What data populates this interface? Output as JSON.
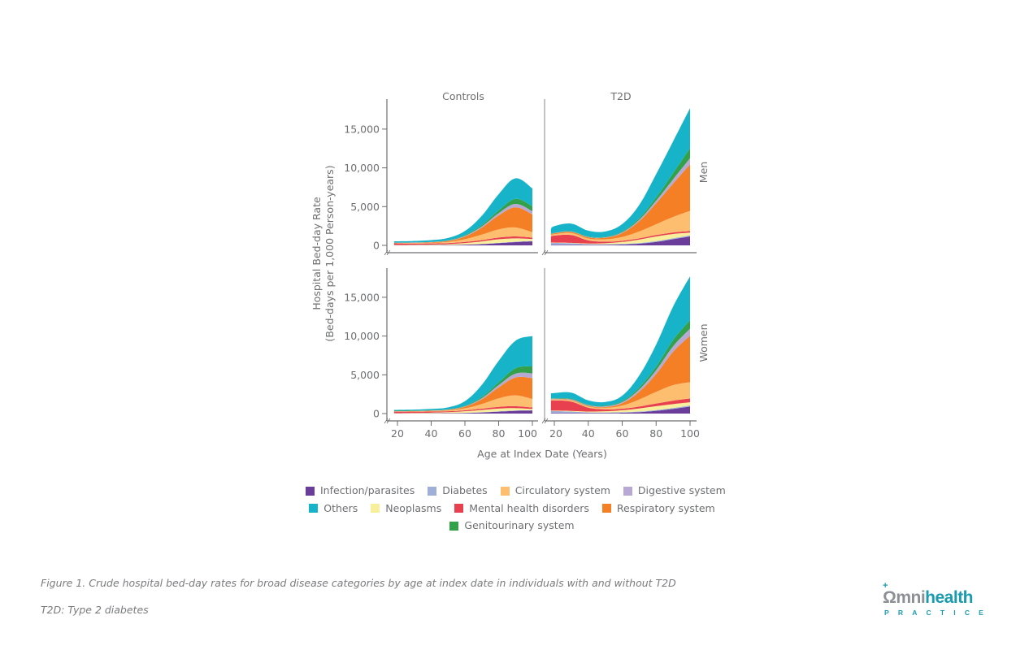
{
  "chart_data": {
    "type": "area",
    "stacked": true,
    "title": "",
    "xlabel": "Age at Index Date (Years)",
    "ylabel": "Hospital Bed-day Rate",
    "ylabel_sub": "(Bed-days per 1,000 Person-years)",
    "xlim": [
      18,
      100
    ],
    "ylim": [
      0,
      18500
    ],
    "x_ticks": [
      20,
      40,
      60,
      80,
      100
    ],
    "x_tick_labels": [
      "20",
      "40",
      "60",
      "80",
      "100"
    ],
    "y_ticks": [
      0,
      5000,
      10000,
      15000
    ],
    "y_tick_labels": [
      "0",
      "5,000",
      "10,000",
      "15,000"
    ],
    "columns": [
      "Controls",
      "T2D"
    ],
    "rows": [
      "Men",
      "Women"
    ],
    "legend_position": "bottom",
    "legend": [
      {
        "name": "Infection/parasites",
        "color": "#6a3d9a"
      },
      {
        "name": "Diabetes",
        "color": "#9fb0d8"
      },
      {
        "name": "Circulatory system",
        "color": "#fdbf6f"
      },
      {
        "name": "Digestive system",
        "color": "#b7a9d3"
      },
      {
        "name": "Others",
        "color": "#17b4c9"
      },
      {
        "name": "Neoplasms",
        "color": "#f8ef9c"
      },
      {
        "name": "Mental health disorders",
        "color": "#e8404f"
      },
      {
        "name": "Respiratory system",
        "color": "#f47f24"
      },
      {
        "name": "Genitourinary system",
        "color": "#33a04a"
      }
    ],
    "stack_order": [
      "Infection/parasites",
      "Diabetes",
      "Neoplasms",
      "Mental health disorders",
      "Circulatory system",
      "Respiratory system",
      "Digestive system",
      "Genitourinary system",
      "Others"
    ],
    "x": [
      18,
      20,
      30,
      40,
      50,
      60,
      70,
      80,
      90,
      100
    ],
    "panels": [
      {
        "column": "Controls",
        "row": "Men",
        "series": [
          {
            "name": "Infection/parasites",
            "values": [
              20,
              20,
              25,
              35,
              50,
              90,
              160,
              290,
              420,
              520
            ]
          },
          {
            "name": "Diabetes",
            "values": [
              5,
              5,
              5,
              8,
              10,
              15,
              25,
              40,
              50,
              50
            ]
          },
          {
            "name": "Neoplasms",
            "values": [
              30,
              30,
              40,
              60,
              110,
              200,
              330,
              450,
              430,
              250
            ]
          },
          {
            "name": "Mental health disorders",
            "values": [
              200,
              200,
              170,
              140,
              130,
              140,
              170,
              230,
              250,
              180
            ]
          },
          {
            "name": "Circulatory system",
            "values": [
              30,
              30,
              50,
              80,
              150,
              350,
              700,
              1050,
              1150,
              700
            ]
          },
          {
            "name": "Respiratory system",
            "values": [
              40,
              40,
              50,
              70,
              120,
              350,
              900,
              1800,
              2600,
              2300
            ]
          },
          {
            "name": "Digestive system",
            "values": [
              20,
              20,
              25,
              35,
              50,
              90,
              170,
              300,
              450,
              400
            ]
          },
          {
            "name": "Genitourinary system",
            "values": [
              10,
              10,
              15,
              20,
              35,
              70,
              160,
              350,
              650,
              650
            ]
          },
          {
            "name": "Others",
            "values": [
              165,
              175,
              190,
              230,
              300,
              550,
              1200,
              2100,
              2650,
              2300
            ]
          }
        ]
      },
      {
        "column": "T2D",
        "row": "Men",
        "series": [
          {
            "name": "Infection/parasites",
            "values": [
              50,
              60,
              70,
              60,
              70,
              110,
              220,
              450,
              800,
              1150
            ]
          },
          {
            "name": "Diabetes",
            "values": [
              250,
              250,
              200,
              100,
              80,
              80,
              80,
              100,
              120,
              150
            ]
          },
          {
            "name": "Neoplasms",
            "values": [
              50,
              50,
              60,
              80,
              130,
              250,
              450,
              600,
              550,
              350
            ]
          },
          {
            "name": "Mental health disorders",
            "values": [
              800,
              900,
              1000,
              400,
              200,
              150,
              150,
              180,
              200,
              200
            ]
          },
          {
            "name": "Circulatory system",
            "values": [
              150,
              180,
              250,
              250,
              300,
              500,
              900,
              1400,
              2000,
              2600
            ]
          },
          {
            "name": "Respiratory system",
            "values": [
              100,
              120,
              150,
              150,
              200,
              500,
              1300,
              2700,
              4300,
              6000
            ]
          },
          {
            "name": "Digestive system",
            "values": [
              30,
              30,
              40,
              50,
              60,
              100,
              200,
              350,
              550,
              800
            ]
          },
          {
            "name": "Genitourinary system",
            "values": [
              30,
              30,
              40,
              50,
              60,
              100,
              200,
              400,
              800,
              1300
            ]
          },
          {
            "name": "Others",
            "values": [
              640,
              860,
              1000,
              760,
              700,
              960,
              1700,
              3000,
              4100,
              5150
            ]
          }
        ]
      },
      {
        "column": "Controls",
        "row": "Women",
        "series": [
          {
            "name": "Infection/parasites",
            "values": [
              20,
              20,
              25,
              35,
              50,
              80,
              140,
              250,
              350,
              400
            ]
          },
          {
            "name": "Diabetes",
            "values": [
              5,
              5,
              5,
              8,
              10,
              15,
              25,
              40,
              50,
              50
            ]
          },
          {
            "name": "Neoplasms",
            "values": [
              30,
              30,
              50,
              80,
              120,
              200,
              300,
              350,
              300,
              150
            ]
          },
          {
            "name": "Mental health disorders",
            "values": [
              200,
              200,
              170,
              140,
              120,
              130,
              170,
              230,
              250,
              180
            ]
          },
          {
            "name": "Circulatory system",
            "values": [
              20,
              20,
              30,
              60,
              100,
              250,
              600,
              1100,
              1400,
              1100
            ]
          },
          {
            "name": "Respiratory system",
            "values": [
              20,
              20,
              30,
              40,
              70,
              200,
              600,
              1400,
              2300,
              2700
            ]
          },
          {
            "name": "Digestive system",
            "values": [
              10,
              10,
              15,
              25,
              40,
              70,
              150,
              300,
              500,
              600
            ]
          },
          {
            "name": "Genitourinary system",
            "values": [
              60,
              60,
              50,
              40,
              40,
              60,
              150,
              350,
              700,
              900
            ]
          },
          {
            "name": "Others",
            "values": [
              105,
              110,
              135,
              170,
              250,
              595,
              1565,
              2780,
              3550,
              3920
            ]
          }
        ]
      },
      {
        "column": "T2D",
        "row": "Women",
        "series": [
          {
            "name": "Infection/parasites",
            "values": [
              80,
              80,
              80,
              60,
              70,
              100,
              180,
              350,
              600,
              900
            ]
          },
          {
            "name": "Diabetes",
            "values": [
              250,
              250,
              180,
              100,
              80,
              80,
              80,
              100,
              120,
              150
            ]
          },
          {
            "name": "Neoplasms",
            "values": [
              50,
              50,
              80,
              100,
              150,
              250,
              400,
              500,
              500,
              400
            ]
          },
          {
            "name": "Mental health disorders",
            "values": [
              1300,
              1320,
              1200,
              500,
              250,
              200,
              250,
              350,
              450,
              500
            ]
          },
          {
            "name": "Circulatory system",
            "values": [
              100,
              100,
              150,
              150,
              200,
              400,
              900,
              1500,
              2000,
              2100
            ]
          },
          {
            "name": "Respiratory system",
            "values": [
              50,
              50,
              60,
              80,
              100,
              300,
              1000,
              2300,
              4300,
              6000
            ]
          },
          {
            "name": "Digestive system",
            "values": [
              60,
              60,
              80,
              80,
              90,
              150,
              300,
              500,
              700,
              900
            ]
          },
          {
            "name": "Genitourinary system",
            "values": [
              60,
              60,
              70,
              70,
              80,
              120,
              250,
              450,
              800,
              1100
            ]
          },
          {
            "name": "Others",
            "values": [
              650,
              680,
              800,
              560,
              480,
              700,
              1540,
              2850,
              4330,
              5650
            ]
          }
        ]
      }
    ]
  },
  "caption": "Figure 1. Crude hospital bed-day rates for broad disease categories by age at index date in individuals with and without T2D",
  "footnote": "T2D: Type 2 diabetes",
  "logo": {
    "omni": "Ωmni",
    "health": "health",
    "sub": "PRACTICE",
    "plus": "+"
  }
}
